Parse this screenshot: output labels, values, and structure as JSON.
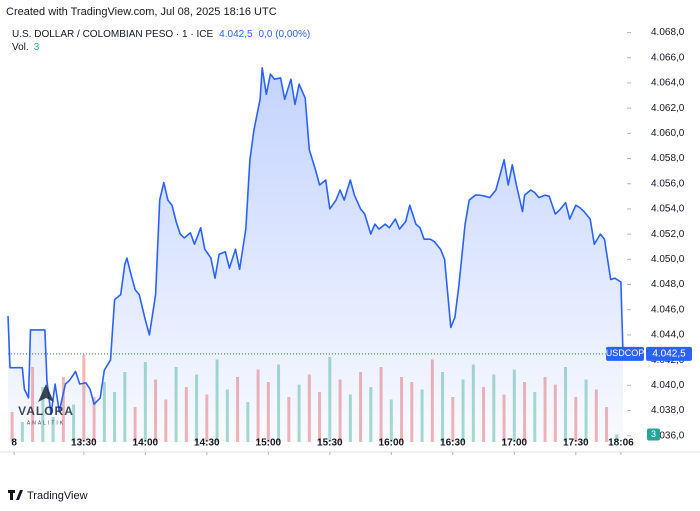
{
  "header": {
    "created": "Created with TradingView.com, Jul 08, 2025 18:16 UTC",
    "symbol": "U.S. DOLLAR / COLOMBIAN PESO · 1 · ICE",
    "change": "0,0 (0,00%)",
    "vol_label": "Vol."
  },
  "chart_data": {
    "type": "area",
    "x": [
      773,
      774,
      780,
      781,
      783,
      784,
      791,
      792,
      794,
      796,
      798,
      801,
      803,
      806,
      808,
      811,
      813,
      815,
      818,
      820,
      823,
      825,
      828,
      830,
      831,
      833,
      835,
      837,
      840,
      842,
      845,
      847,
      849,
      851,
      853,
      855,
      857,
      859,
      862,
      864,
      867,
      869,
      872,
      874,
      876,
      879,
      881,
      884,
      886,
      889,
      891,
      893,
      896,
      897,
      899,
      901,
      903,
      906,
      908,
      911,
      913,
      915,
      918,
      920,
      923,
      925,
      928,
      930,
      933,
      935,
      937,
      940,
      942,
      945,
      947,
      950,
      952,
      954,
      957,
      959,
      962,
      964,
      967,
      969,
      972,
      974,
      976,
      979,
      981,
      984,
      986,
      989,
      991,
      993,
      996,
      998,
      1001,
      1003,
      1006,
      1008,
      1011,
      1013,
      1015,
      1017,
      1019,
      1021,
      1024,
      1025,
      1028,
      1030,
      1032,
      1035,
      1037,
      1040,
      1042,
      1045,
      1047,
      1050,
      1052,
      1054,
      1057,
      1059,
      1062,
      1064,
      1067,
      1069,
      1072,
      1073
    ],
    "series": [
      {
        "name": "USDCOP",
        "color": "#2962ff",
        "values": [
          4045.5,
          4041.4,
          4041.4,
          4039.7,
          4039.0,
          4044.4,
          4044.4,
          4040.4,
          4037.7,
          4040.1,
          4037.9,
          4040.1,
          4040.4,
          4041.1,
          4040.1,
          4040.2,
          4039.7,
          4038.5,
          4039.0,
          4041.2,
          4042.0,
          4046.8,
          4047.2,
          4049.6,
          4050.1,
          4048.8,
          4047.6,
          4047.2,
          4045.2,
          4044.0,
          4047.2,
          4054.7,
          4056.1,
          4054.7,
          4054.3,
          4053.0,
          4052.0,
          4051.7,
          4052.1,
          4051.2,
          4052.5,
          4050.8,
          4050.1,
          4048.5,
          4050.4,
          4050.6,
          4049.3,
          4050.8,
          4049.2,
          4052.4,
          4057.9,
          4060.3,
          4062.7,
          4065.2,
          4063.1,
          4064.7,
          4064.3,
          4064.4,
          4062.7,
          4064.3,
          4062.3,
          4063.9,
          4062.8,
          4058.7,
          4057.1,
          4055.9,
          4056.3,
          4054.0,
          4054.7,
          4055.5,
          4054.7,
          4056.3,
          4055.1,
          4054.0,
          4053.6,
          4052.0,
          4052.8,
          4052.4,
          4052.8,
          4052.5,
          4053.2,
          4052.4,
          4053.0,
          4054.3,
          4052.8,
          4052.5,
          4051.6,
          4051.6,
          4051.4,
          4050.8,
          4050.0,
          4044.6,
          4045.4,
          4048.0,
          4052.8,
          4054.7,
          4055.1,
          4055.1,
          4055.0,
          4054.9,
          4055.5,
          4056.7,
          4057.9,
          4055.9,
          4057.5,
          4055.9,
          4053.8,
          4055.1,
          4055.5,
          4055.3,
          4054.9,
          4055.1,
          4055.0,
          4053.6,
          4053.9,
          4054.5,
          4053.2,
          4054.3,
          4054.1,
          4053.8,
          4053.2,
          4051.2,
          4052.0,
          4051.6,
          4048.4,
          4048.5,
          4048.2,
          4042.5
        ]
      }
    ],
    "last_price": {
      "value": 4042.5,
      "label": "4.042,5"
    },
    "xlim": [
      773,
      1074
    ],
    "xticks": [
      {
        "value": 776,
        "label": "8"
      },
      {
        "value": 810,
        "label": "13:30"
      },
      {
        "value": 840,
        "label": "14:00"
      },
      {
        "value": 870,
        "label": "14:30"
      },
      {
        "value": 900,
        "label": "15:00"
      },
      {
        "value": 930,
        "label": "15:30"
      },
      {
        "value": 960,
        "label": "16:00"
      },
      {
        "value": 990,
        "label": "16:30"
      },
      {
        "value": 1020,
        "label": "17:00"
      },
      {
        "value": 1050,
        "label": "17:30"
      },
      {
        "value": 1072,
        "label": "18:06"
      }
    ],
    "ylim": [
      4035.5,
      4068.6
    ],
    "yticks": [
      {
        "value": 4036,
        "label": "4.036,0"
      },
      {
        "value": 4038,
        "label": "4.038,0"
      },
      {
        "value": 4040,
        "label": "4.040,0"
      },
      {
        "value": 4042,
        "label": "4.042,0"
      },
      {
        "value": 4044,
        "label": "4.044,0"
      },
      {
        "value": 4046,
        "label": "4.046,0"
      },
      {
        "value": 4048,
        "label": "4.048,0"
      },
      {
        "value": 4050,
        "label": "4.050,0"
      },
      {
        "value": 4052,
        "label": "4.052,0"
      },
      {
        "value": 4054,
        "label": "4.054,0"
      },
      {
        "value": 4056,
        "label": "4.056,0"
      },
      {
        "value": 4058,
        "label": "4.058,0"
      },
      {
        "value": 4060,
        "label": "4.060,0"
      },
      {
        "value": 4062,
        "label": "4.062,0"
      },
      {
        "value": 4064,
        "label": "4.064,0"
      },
      {
        "value": 4066,
        "label": "4.066,0"
      },
      {
        "value": 4068,
        "label": "4.068,0"
      }
    ],
    "grid": false,
    "volume": {
      "ylim": [
        0,
        40
      ],
      "x": [
        775,
        780,
        785,
        790,
        795,
        800,
        805,
        810,
        815,
        820,
        825,
        830,
        835,
        840,
        845,
        850,
        855,
        860,
        865,
        870,
        875,
        880,
        885,
        890,
        895,
        900,
        905,
        910,
        915,
        920,
        925,
        930,
        935,
        940,
        945,
        950,
        955,
        960,
        965,
        970,
        975,
        980,
        985,
        990,
        995,
        1000,
        1005,
        1010,
        1015,
        1020,
        1025,
        1030,
        1035,
        1040,
        1045,
        1050,
        1055,
        1060,
        1065,
        1070
      ],
      "values": [
        12,
        8,
        30,
        22,
        10,
        26,
        15,
        35,
        18,
        24,
        20,
        28,
        14,
        32,
        25,
        17,
        30,
        22,
        27,
        19,
        33,
        21,
        26,
        16,
        29,
        24,
        31,
        18,
        23,
        27,
        20,
        34,
        25,
        19,
        28,
        22,
        30,
        17,
        26,
        24,
        21,
        33,
        28,
        18,
        25,
        31,
        22,
        27,
        19,
        29,
        24,
        20,
        26,
        23,
        30,
        18,
        25,
        21,
        14,
        3
      ],
      "colors": [
        "#f5b5b3",
        "#a8dccd",
        "#f5b5b3",
        "#a8dccd",
        "#a8dccd",
        "#f5b5b3",
        "#a8dccd",
        "#f5b5b3",
        "#f5b5b3",
        "#a8dccd",
        "#a8dccd",
        "#a8dccd",
        "#f5b5b3",
        "#a8dccd",
        "#f5b5b3",
        "#f5b5b3",
        "#a8dccd",
        "#f5b5b3",
        "#a8dccd",
        "#f5b5b3",
        "#a8dccd",
        "#a8dccd",
        "#f5b5b3",
        "#a8dccd",
        "#f5b5b3",
        "#f5b5b3",
        "#a8dccd",
        "#f5b5b3",
        "#a8dccd",
        "#f5b5b3",
        "#f5b5b3",
        "#a8dccd",
        "#f5b5b3",
        "#a8dccd",
        "#f5b5b3",
        "#a8dccd",
        "#f5b5b3",
        "#a8dccd",
        "#f5b5b3",
        "#f5b5b3",
        "#a8dccd",
        "#f5b5b3",
        "#a8dccd",
        "#f5b5b3",
        "#a8dccd",
        "#a8dccd",
        "#f5b5b3",
        "#a8dccd",
        "#f5b5b3",
        "#a8dccd",
        "#f5b5b3",
        "#a8dccd",
        "#f5b5b3",
        "#f5b5b3",
        "#a8dccd",
        "#f5b5b3",
        "#a8dccd",
        "#f5b5b3",
        "#f5b5b3",
        "#a8dccd"
      ]
    }
  },
  "watermark": {
    "title": "VALORA",
    "subtitle": "ANALITIK"
  },
  "footer": {
    "brand": "TradingView"
  }
}
